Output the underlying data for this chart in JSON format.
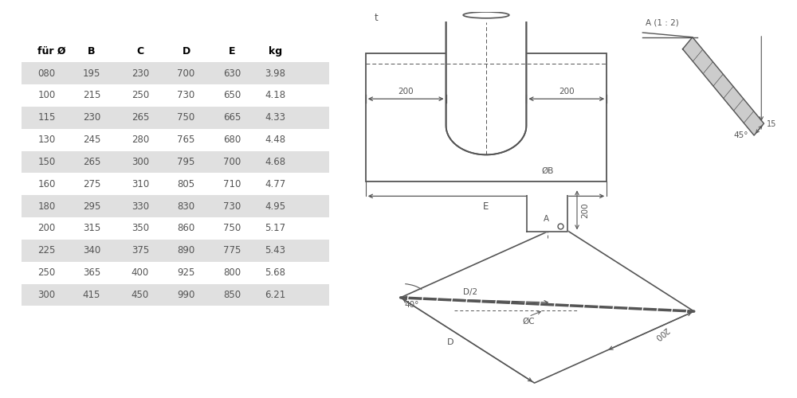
{
  "table_headers": [
    "für Ø",
    "B",
    "C",
    "D",
    "E",
    "kg"
  ],
  "table_rows": [
    [
      "080",
      "195",
      "230",
      "700",
      "630",
      "3.98"
    ],
    [
      "100",
      "215",
      "250",
      "730",
      "650",
      "4.18"
    ],
    [
      "115",
      "230",
      "265",
      "750",
      "665",
      "4.33"
    ],
    [
      "130",
      "245",
      "280",
      "765",
      "680",
      "4.48"
    ],
    [
      "150",
      "265",
      "300",
      "795",
      "700",
      "4.68"
    ],
    [
      "160",
      "275",
      "310",
      "805",
      "710",
      "4.77"
    ],
    [
      "180",
      "295",
      "330",
      "830",
      "730",
      "4.95"
    ],
    [
      "200",
      "315",
      "350",
      "860",
      "750",
      "5.17"
    ],
    [
      "225",
      "340",
      "375",
      "890",
      "775",
      "5.43"
    ],
    [
      "250",
      "365",
      "400",
      "925",
      "800",
      "5.68"
    ],
    [
      "300",
      "415",
      "450",
      "990",
      "850",
      "6.21"
    ]
  ],
  "shaded_rows": [
    0,
    2,
    4,
    6,
    8,
    10
  ],
  "row_bg_color": "#e0e0e0",
  "header_color": "#000000",
  "data_color": "#555555",
  "bg_color": "#ffffff",
  "line_color": "#555555"
}
